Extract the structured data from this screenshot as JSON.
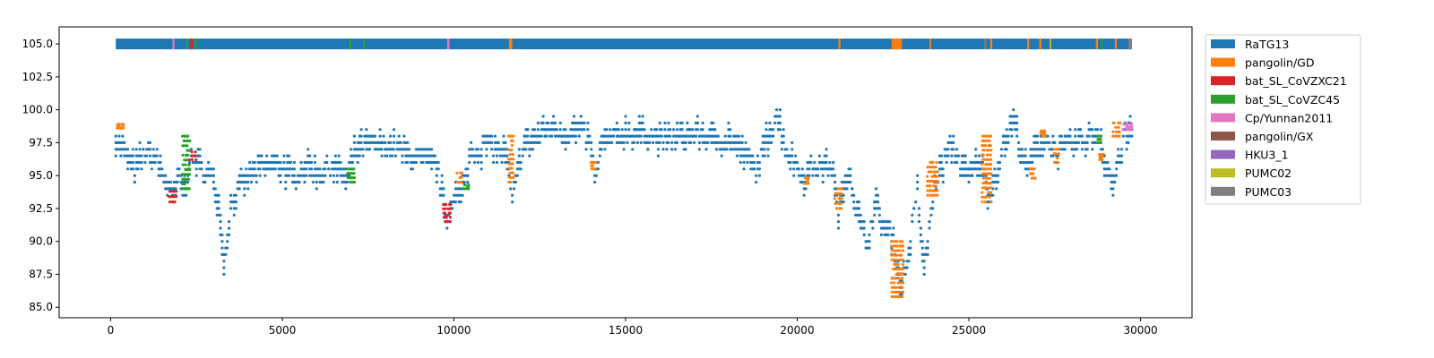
{
  "chart_data": {
    "type": "scatter",
    "title": "",
    "xlabel": "",
    "ylabel": "",
    "xlim": [
      -1500,
      31500
    ],
    "ylim": [
      84.2,
      106.3
    ],
    "xticks": [
      0,
      5000,
      10000,
      15000,
      20000,
      25000,
      30000
    ],
    "xtick_labels": [
      "0",
      "5000",
      "10000",
      "15000",
      "20000",
      "25000",
      "30000"
    ],
    "yticks": [
      85.0,
      87.5,
      90.0,
      92.5,
      95.0,
      97.5,
      100.0,
      102.5,
      105.0
    ],
    "ytick_labels": [
      "85.0",
      "87.5",
      "90.0",
      "92.5",
      "95.0",
      "97.5",
      "100.0",
      "102.5",
      "105.0"
    ],
    "grid": false,
    "legend_placement": "outside-right-top",
    "colors": {
      "RaTG13": "#1f77b4",
      "pangolin/GD": "#ff7f0e",
      "bat_SL_CoVZXC21": "#d62728",
      "bat_SL_CoVZC45": "#2ca02c",
      "Cp/Yunnan2011": "#e377c2",
      "pangolin/GX": "#8c564b",
      "HKU3_1": "#9467bd",
      "PUMC02": "#bcbd22",
      "PUMC03": "#7f7f7f"
    },
    "legend": [
      "RaTG13",
      "pangolin/GD",
      "bat_SL_CoVZXC21",
      "bat_SL_CoVZC45",
      "Cp/Yunnan2011",
      "pangolin/GX",
      "HKU3_1",
      "PUMC02",
      "PUMC03"
    ],
    "band": {
      "y": 105.0,
      "x_range": [
        150,
        29750
      ],
      "default": "RaTG13",
      "segments": [
        {
          "from": 1800,
          "to": 1860,
          "name": "Cp/Yunnan2011"
        },
        {
          "from": 2200,
          "to": 2260,
          "name": "bat_SL_CoVZC45"
        },
        {
          "from": 2320,
          "to": 2400,
          "name": "bat_SL_CoVZXC21"
        },
        {
          "from": 2450,
          "to": 2510,
          "name": "bat_SL_CoVZC45"
        },
        {
          "from": 6950,
          "to": 7010,
          "name": "bat_SL_CoVZC45"
        },
        {
          "from": 7350,
          "to": 7400,
          "name": "bat_SL_CoVZC45"
        },
        {
          "from": 9800,
          "to": 9870,
          "name": "Cp/Yunnan2011"
        },
        {
          "from": 11600,
          "to": 11700,
          "name": "pangolin/GD"
        },
        {
          "from": 21200,
          "to": 21260,
          "name": "pangolin/GD"
        },
        {
          "from": 22750,
          "to": 23050,
          "name": "pangolin/GD"
        },
        {
          "from": 23850,
          "to": 23900,
          "name": "pangolin/GD"
        },
        {
          "from": 25450,
          "to": 25510,
          "name": "PUMC03"
        },
        {
          "from": 25620,
          "to": 25680,
          "name": "pangolin/GD"
        },
        {
          "from": 26700,
          "to": 26760,
          "name": "pangolin/GD"
        },
        {
          "from": 27050,
          "to": 27110,
          "name": "pangolin/GD"
        },
        {
          "from": 27350,
          "to": 27400,
          "name": "PUMC02"
        },
        {
          "from": 28700,
          "to": 28760,
          "name": "pangolin/GD"
        },
        {
          "from": 28850,
          "to": 28900,
          "name": "bat_SL_CoVZC45"
        },
        {
          "from": 29250,
          "to": 29310,
          "name": "pangolin/GD"
        },
        {
          "from": 29650,
          "to": 29750,
          "name": "PUMC03"
        }
      ]
    },
    "profile": {
      "x": [
        150,
        400,
        700,
        1000,
        1300,
        1600,
        1800,
        2000,
        2150,
        2300,
        2500,
        2700,
        3000,
        3200,
        3300,
        3500,
        3800,
        4200,
        4700,
        5000,
        5300,
        5700,
        6000,
        6500,
        6900,
        7100,
        7400,
        8000,
        8500,
        9000,
        9500,
        9800,
        10000,
        10200,
        10500,
        11000,
        11500,
        11700,
        12000,
        12300,
        12800,
        13200,
        13700,
        14000,
        14100,
        14300,
        15000,
        15500,
        16000,
        16500,
        17000,
        17500,
        18000,
        18400,
        18800,
        19200,
        19400,
        19700,
        20000,
        20200,
        20500,
        21000,
        21200,
        21500,
        21700,
        22000,
        22300,
        22500,
        22800,
        23000,
        23200,
        23500,
        23700,
        24000,
        24500,
        25000,
        25300,
        25600,
        26000,
        26300,
        26700,
        26900,
        27200,
        27600,
        28000,
        28400,
        28800,
        29000,
        29200,
        29500,
        29750
      ],
      "y": [
        98.0,
        97.0,
        95.5,
        97.0,
        96.5,
        95.0,
        93.5,
        95.0,
        94.0,
        96.5,
        96.5,
        95.5,
        95.0,
        92.0,
        88.5,
        93.0,
        94.5,
        95.5,
        96.0,
        96.0,
        95.0,
        96.0,
        95.5,
        96.0,
        94.8,
        97.0,
        97.5,
        97.5,
        97.0,
        96.5,
        96.0,
        91.8,
        94.0,
        93.5,
        97.0,
        97.5,
        97.0,
        93.0,
        97.5,
        98.0,
        99.0,
        98.5,
        98.5,
        97.5,
        95.0,
        97.5,
        98.5,
        98.5,
        98.0,
        98.0,
        98.5,
        98.0,
        98.0,
        97.0,
        95.5,
        98.5,
        100.0,
        97.0,
        96.0,
        95.0,
        96.0,
        96.0,
        92.5,
        96.0,
        93.0,
        90.0,
        93.0,
        91.5,
        90.5,
        87.0,
        88.5,
        94.0,
        88.0,
        94.5,
        97.5,
        95.0,
        96.5,
        93.5,
        97.5,
        99.5,
        95.5,
        97.0,
        98.0,
        97.0,
        97.5,
        98.0,
        98.5,
        96.0,
        94.5,
        98.0,
        98.5
      ]
    },
    "colored_runs": [
      {
        "name": "pangolin/GD",
        "from": 200,
        "to": 380,
        "y": [
          98.6,
          98.9
        ]
      },
      {
        "name": "bat_SL_CoVZXC21",
        "from": 1700,
        "to": 1900,
        "y": [
          93.0,
          93.8
        ]
      },
      {
        "name": "bat_SL_CoVZC45",
        "from": 2100,
        "to": 2300,
        "y": [
          94.0,
          98.0
        ]
      },
      {
        "name": "bat_SL_CoVZXC21",
        "from": 2300,
        "to": 2500,
        "y": [
          96.2,
          96.8
        ]
      },
      {
        "name": "bat_SL_CoVZC45",
        "from": 6900,
        "to": 7100,
        "y": [
          94.5,
          95.5
        ]
      },
      {
        "name": "bat_SL_CoVZXC21",
        "from": 9700,
        "to": 9900,
        "y": [
          91.5,
          92.8
        ]
      },
      {
        "name": "pangolin/GD",
        "from": 10100,
        "to": 10250,
        "y": [
          94.5,
          95.2
        ]
      },
      {
        "name": "bat_SL_CoVZC45",
        "from": 10300,
        "to": 10450,
        "y": [
          94.0,
          94.3
        ]
      },
      {
        "name": "pangolin/GD",
        "from": 11600,
        "to": 11750,
        "y": [
          94.5,
          98.0
        ]
      },
      {
        "name": "pangolin/GD",
        "from": 14000,
        "to": 14150,
        "y": [
          95.5,
          96.0
        ]
      },
      {
        "name": "pangolin/GD",
        "from": 20200,
        "to": 20350,
        "y": [
          94.4,
          94.8
        ]
      },
      {
        "name": "pangolin/GD",
        "from": 21100,
        "to": 21300,
        "y": [
          92.5,
          94.0
        ]
      },
      {
        "name": "pangolin/GD",
        "from": 22750,
        "to": 23100,
        "y": [
          85.8,
          90.0
        ]
      },
      {
        "name": "pangolin/GD",
        "from": 23800,
        "to": 24100,
        "y": [
          93.5,
          96.0
        ]
      },
      {
        "name": "pangolin/GD",
        "from": 25400,
        "to": 25650,
        "y": [
          93.0,
          98.0
        ]
      },
      {
        "name": "pangolin/GD",
        "from": 26800,
        "to": 26950,
        "y": [
          94.8,
          95.5
        ]
      },
      {
        "name": "pangolin/GD",
        "from": 27100,
        "to": 27250,
        "y": [
          98.0,
          98.4
        ]
      },
      {
        "name": "pangolin/GD",
        "from": 27500,
        "to": 27650,
        "y": [
          96.0,
          97.0
        ]
      },
      {
        "name": "pangolin/GD",
        "from": 28800,
        "to": 28950,
        "y": [
          96.2,
          96.6
        ]
      },
      {
        "name": "bat_SL_CoVZC45",
        "from": 28750,
        "to": 28850,
        "y": [
          97.5,
          98.0
        ]
      },
      {
        "name": "pangolin/GD",
        "from": 29200,
        "to": 29400,
        "y": [
          98.0,
          99.0
        ]
      },
      {
        "name": "Cp/Yunnan2011",
        "from": 29500,
        "to": 29750,
        "y": [
          98.5,
          98.9
        ]
      }
    ]
  }
}
